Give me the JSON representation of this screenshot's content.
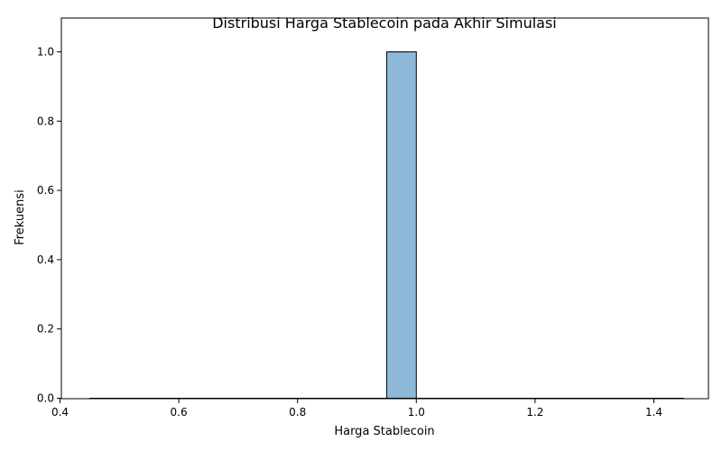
{
  "chart_data": {
    "type": "bar",
    "title": "Distribusi Harga Stablecoin pada Akhir Simulasi",
    "xlabel": "Harga Stablecoin",
    "ylabel": "Frekuensi",
    "xlim": [
      0.4,
      1.5
    ],
    "ylim": [
      0,
      1.05
    ],
    "x_ticks": [
      0.4,
      0.6,
      0.8,
      1.0,
      1.2,
      1.4
    ],
    "x_tick_labels": [
      "0.4",
      "0.6",
      "0.8",
      "1.0",
      "1.2",
      "1.4"
    ],
    "y_ticks": [
      0.0,
      0.2,
      0.4,
      0.6,
      0.8,
      1.0
    ],
    "y_tick_labels": [
      "0.0",
      "0.2",
      "0.4",
      "0.6",
      "0.8",
      "1.0"
    ],
    "bins": [
      {
        "x_start": 0.45,
        "x_end": 0.95,
        "value": 0
      },
      {
        "x_start": 0.95,
        "x_end": 1.0,
        "value": 1
      },
      {
        "x_start": 1.0,
        "x_end": 1.45,
        "value": 0
      }
    ],
    "grid": false,
    "bar_fill": "#8db8d8",
    "bar_edge": "#000000"
  }
}
